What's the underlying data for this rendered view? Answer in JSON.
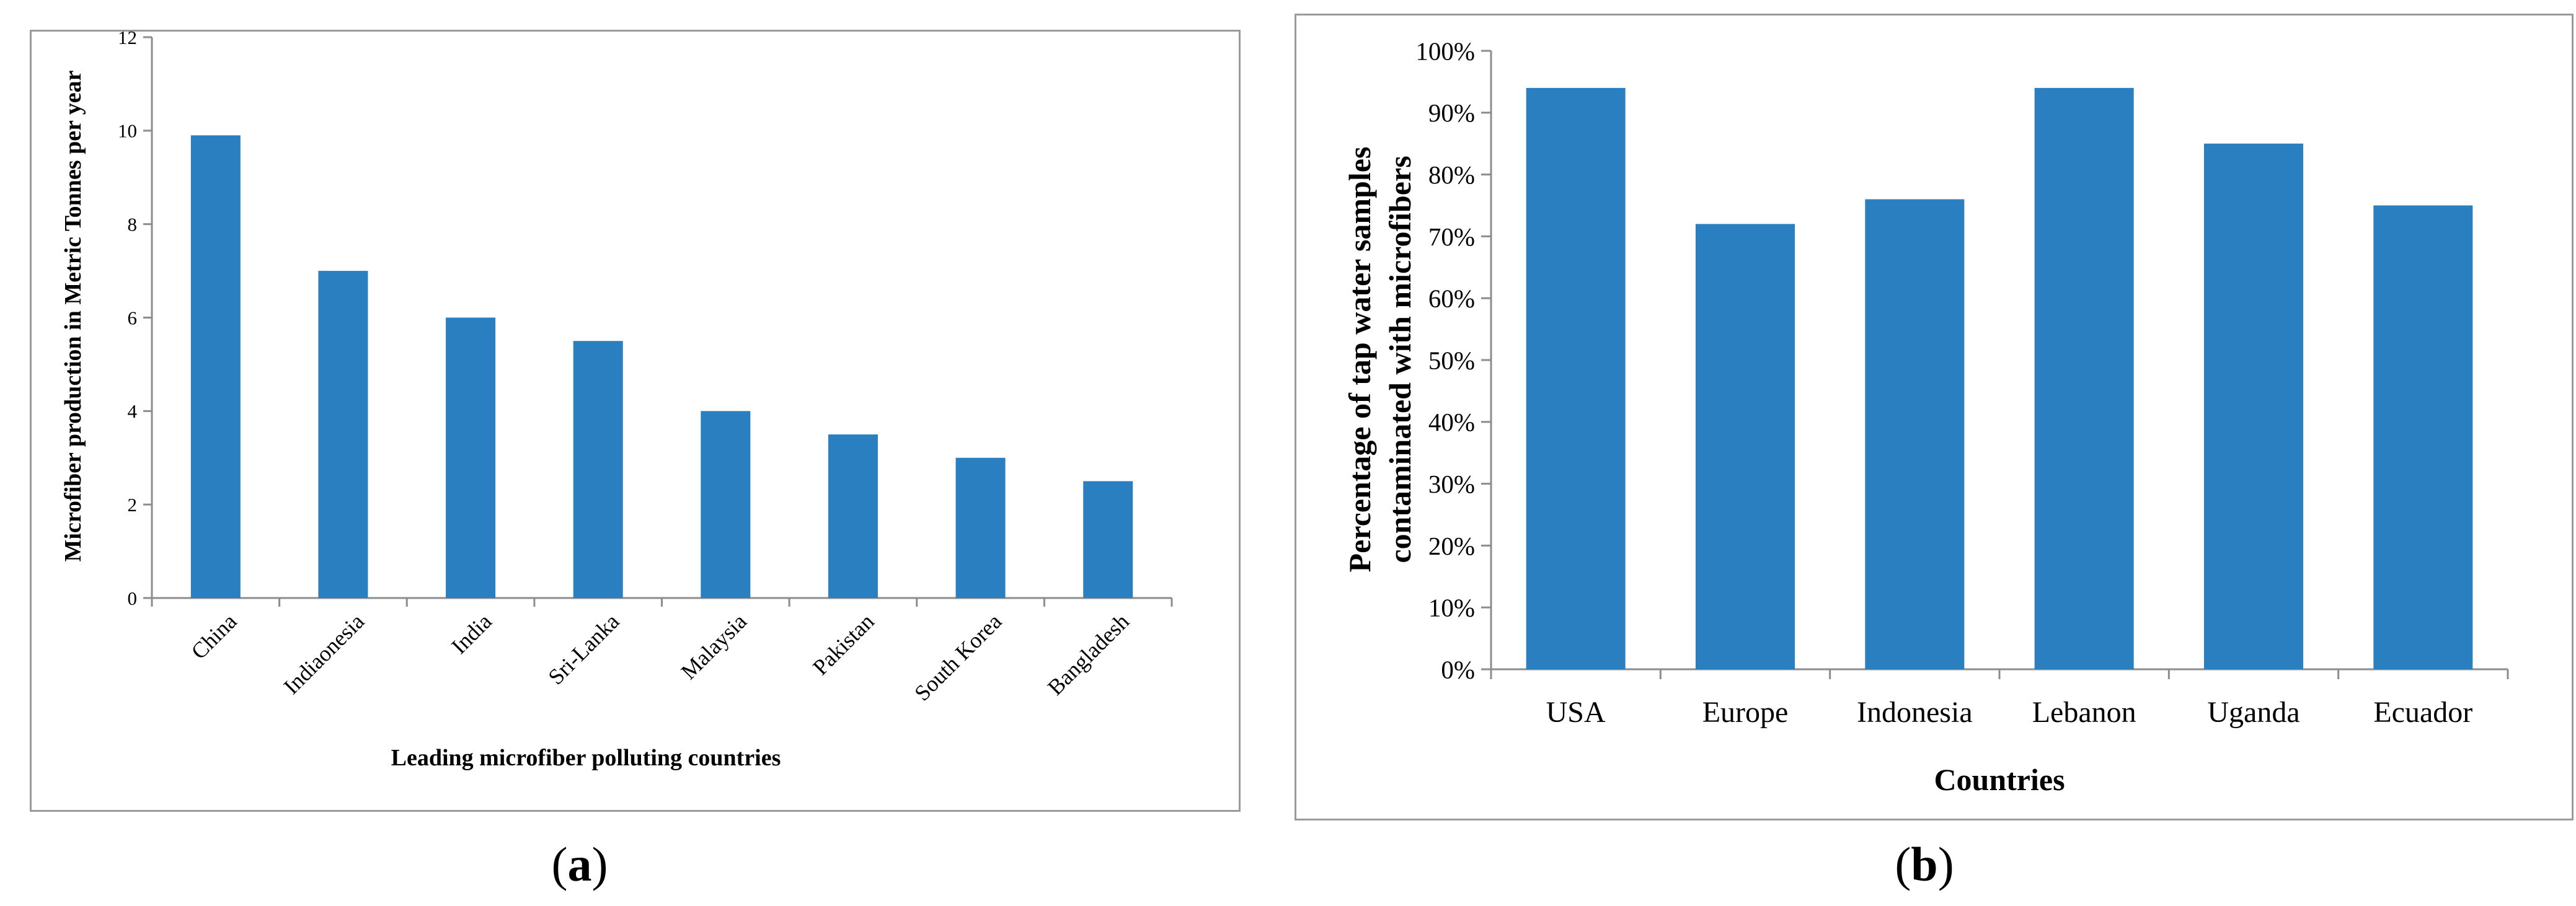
{
  "chart_data": [
    {
      "type": "bar",
      "panel": "a",
      "categories": [
        "China",
        "Indiaonesia",
        "India",
        "Sri-Lanka",
        "Malaysia",
        "Pakistan",
        "South Korea",
        "Bangladesh"
      ],
      "values": [
        9.9,
        7,
        6,
        5.5,
        4,
        3.5,
        3,
        2.5
      ],
      "ylim": [
        0,
        12
      ],
      "yticks": [
        0,
        2,
        4,
        6,
        8,
        10,
        12
      ],
      "ytick_labels": [
        "0",
        "2",
        "4",
        "6",
        "8",
        "10",
        "12"
      ],
      "xlabel": "Leading microfiber polluting countries",
      "ylabel": "Microfiber  production in Metric Tonnes per year",
      "bar_color": "#2a7fc1",
      "grid": false
    },
    {
      "type": "bar",
      "panel": "b",
      "categories": [
        "USA",
        "Europe",
        "Indonesia",
        "Lebanon",
        "Uganda",
        "Ecuador"
      ],
      "values": [
        94,
        72,
        76,
        94,
        85,
        75
      ],
      "ylim": [
        0,
        100
      ],
      "yticks": [
        0,
        10,
        20,
        30,
        40,
        50,
        60,
        70,
        80,
        90,
        100
      ],
      "ytick_labels": [
        "0%",
        "10%",
        "20%",
        "30%",
        "40%",
        "50%",
        "60%",
        "70%",
        "80%",
        "90%",
        "100%"
      ],
      "xlabel": "Countries",
      "ylabel_lines": [
        "Percentage of tap water samples",
        "contaminated with microfibers"
      ],
      "bar_color": "#2a7fc1",
      "grid": false
    }
  ],
  "captions": {
    "a": {
      "open": "(",
      "letter": "a",
      "close": ")"
    },
    "b": {
      "open": "(",
      "letter": "b",
      "close": ")"
    }
  }
}
